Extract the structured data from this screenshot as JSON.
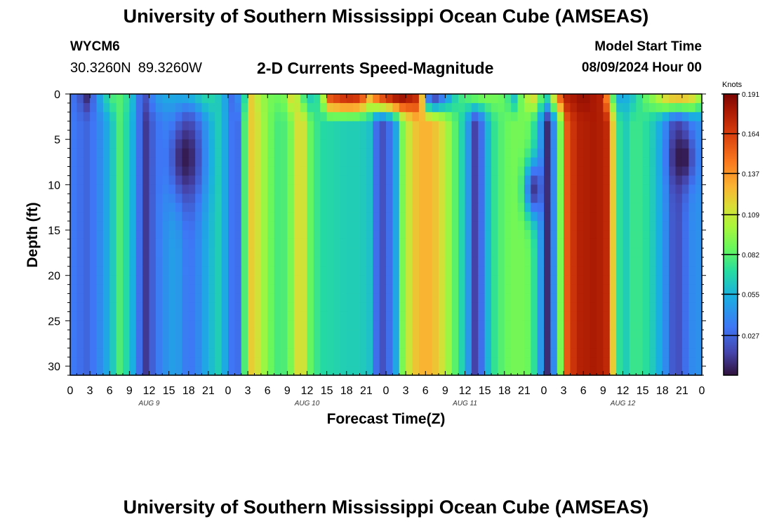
{
  "page": {
    "title": "University of Southern Mississippi Ocean Cube (AMSEAS)",
    "footer_title": "University of Southern Mississippi Ocean Cube (AMSEAS)",
    "station_id": "WYCM6",
    "latitude": "30.3260N",
    "longitude": "89.3260W",
    "subtitle": "2-D Currents Speed-Magnitude",
    "model_start_label": "Model Start Time",
    "model_start_value": "08/09/2024 Hour 00"
  },
  "chart_data": {
    "type": "heatmap",
    "title": "2-D Currents Speed-Magnitude",
    "xlabel": "Forecast Time(Z)",
    "ylabel": "Depth (ft)",
    "x_range_hours": [
      0,
      96
    ],
    "x_tick_step_hours": 3,
    "x_tick_labels": [
      "0",
      "3",
      "6",
      "9",
      "12",
      "15",
      "18",
      "21",
      "0",
      "3",
      "6",
      "9",
      "12",
      "15",
      "18",
      "21",
      "0",
      "3",
      "6",
      "9",
      "12",
      "15",
      "18",
      "21",
      "0",
      "3",
      "6",
      "9",
      "12",
      "15",
      "18",
      "21",
      "0"
    ],
    "day_labels": [
      {
        "label": "AUG 9",
        "hour": 12
      },
      {
        "label": "AUG 10",
        "hour": 36
      },
      {
        "label": "AUG 11",
        "hour": 60
      },
      {
        "label": "AUG 12",
        "hour": 84
      }
    ],
    "y_range_ft": [
      0,
      31
    ],
    "y_inverted": true,
    "y_ticks": [
      0,
      5,
      10,
      15,
      20,
      25,
      30
    ],
    "colorbar": {
      "unit_label": "Knots",
      "min": 0.0,
      "max": 0.191,
      "tick_values": [
        0.027,
        0.055,
        0.082,
        0.109,
        0.137,
        0.164,
        0.191
      ],
      "tick_labels": [
        "0.027",
        "0.055",
        "0.082",
        "0.109",
        "0.137",
        "0.164",
        "0.191"
      ]
    },
    "surface_layer_ft": [
      0,
      3.5
    ],
    "surface_speed_knots": [
      {
        "hour": 0,
        "v": 0.035
      },
      {
        "hour": 1.5,
        "v": 0.022
      },
      {
        "hour": 2.5,
        "v": 0.008
      },
      {
        "hour": 3.5,
        "v": 0.028
      },
      {
        "hour": 5,
        "v": 0.06
      },
      {
        "hour": 7,
        "v": 0.085
      },
      {
        "hour": 9,
        "v": 0.07
      },
      {
        "hour": 10.5,
        "v": 0.03
      },
      {
        "hour": 11.5,
        "v": 0.02
      },
      {
        "hour": 13,
        "v": 0.045
      },
      {
        "hour": 15,
        "v": 0.055
      },
      {
        "hour": 17,
        "v": 0.06
      },
      {
        "hour": 19,
        "v": 0.065
      },
      {
        "hour": 21,
        "v": 0.072
      },
      {
        "hour": 23,
        "v": 0.06
      },
      {
        "hour": 24.5,
        "v": 0.03
      },
      {
        "hour": 26,
        "v": 0.045
      },
      {
        "hour": 27.5,
        "v": 0.12
      },
      {
        "hour": 29,
        "v": 0.1
      },
      {
        "hour": 31,
        "v": 0.085
      },
      {
        "hour": 32.5,
        "v": 0.09
      },
      {
        "hour": 34,
        "v": 0.125
      },
      {
        "hour": 35,
        "v": 0.085
      },
      {
        "hour": 36.5,
        "v": 0.065
      },
      {
        "hour": 38,
        "v": 0.075
      },
      {
        "hour": 39.5,
        "v": 0.16
      },
      {
        "hour": 42,
        "v": 0.175
      },
      {
        "hour": 44,
        "v": 0.17
      },
      {
        "hour": 45.5,
        "v": 0.13
      },
      {
        "hour": 47,
        "v": 0.16
      },
      {
        "hour": 50,
        "v": 0.19
      },
      {
        "hour": 53,
        "v": 0.17
      },
      {
        "hour": 54.5,
        "v": 0.03
      },
      {
        "hour": 55.5,
        "v": 0.015
      },
      {
        "hour": 57,
        "v": 0.04
      },
      {
        "hour": 59,
        "v": 0.075
      },
      {
        "hour": 62,
        "v": 0.09
      },
      {
        "hour": 64,
        "v": 0.09
      },
      {
        "hour": 66,
        "v": 0.085
      },
      {
        "hour": 67.5,
        "v": 0.06
      },
      {
        "hour": 69,
        "v": 0.1
      },
      {
        "hour": 71,
        "v": 0.12
      },
      {
        "hour": 72,
        "v": 0.05
      },
      {
        "hour": 73,
        "v": 0.09
      },
      {
        "hour": 75,
        "v": 0.175
      },
      {
        "hour": 78,
        "v": 0.185
      },
      {
        "hour": 81,
        "v": 0.175
      },
      {
        "hour": 83,
        "v": 0.05
      },
      {
        "hour": 85,
        "v": 0.055
      },
      {
        "hour": 87,
        "v": 0.08
      },
      {
        "hour": 89,
        "v": 0.1
      },
      {
        "hour": 91,
        "v": 0.125
      },
      {
        "hour": 93,
        "v": 0.13
      },
      {
        "hour": 95,
        "v": 0.115
      },
      {
        "hour": 96,
        "v": 0.09
      }
    ],
    "deep_speed_knots": [
      {
        "hour": 0,
        "v": 0.035
      },
      {
        "hour": 1.5,
        "v": 0.03
      },
      {
        "hour": 2.5,
        "v": 0.027
      },
      {
        "hour": 4,
        "v": 0.035
      },
      {
        "hour": 6,
        "v": 0.055
      },
      {
        "hour": 7.5,
        "v": 0.08
      },
      {
        "hour": 9,
        "v": 0.065
      },
      {
        "hour": 10.5,
        "v": 0.03
      },
      {
        "hour": 11.5,
        "v": 0.012
      },
      {
        "hour": 12.5,
        "v": 0.025
      },
      {
        "hour": 14,
        "v": 0.04
      },
      {
        "hour": 16,
        "v": 0.05
      },
      {
        "hour": 18,
        "v": 0.03
      },
      {
        "hour": 19.5,
        "v": 0.04
      },
      {
        "hour": 21,
        "v": 0.055
      },
      {
        "hour": 22.5,
        "v": 0.065
      },
      {
        "hour": 24,
        "v": 0.045
      },
      {
        "hour": 25,
        "v": 0.02
      },
      {
        "hour": 26,
        "v": 0.04
      },
      {
        "hour": 27,
        "v": 0.12
      },
      {
        "hour": 28,
        "v": 0.12
      },
      {
        "hour": 30,
        "v": 0.09
      },
      {
        "hour": 32,
        "v": 0.075
      },
      {
        "hour": 33.5,
        "v": 0.09
      },
      {
        "hour": 35,
        "v": 0.125
      },
      {
        "hour": 36.5,
        "v": 0.085
      },
      {
        "hour": 38,
        "v": 0.07
      },
      {
        "hour": 40,
        "v": 0.068
      },
      {
        "hour": 42,
        "v": 0.065
      },
      {
        "hour": 44,
        "v": 0.065
      },
      {
        "hour": 45.5,
        "v": 0.06
      },
      {
        "hour": 46.5,
        "v": 0.03
      },
      {
        "hour": 47.5,
        "v": 0.02
      },
      {
        "hour": 48.5,
        "v": 0.03
      },
      {
        "hour": 49.5,
        "v": 0.05
      },
      {
        "hour": 50.5,
        "v": 0.09
      },
      {
        "hour": 52,
        "v": 0.12
      },
      {
        "hour": 54,
        "v": 0.13
      },
      {
        "hour": 56,
        "v": 0.12
      },
      {
        "hour": 58,
        "v": 0.09
      },
      {
        "hour": 60,
        "v": 0.06
      },
      {
        "hour": 61.5,
        "v": 0.015
      },
      {
        "hour": 62.5,
        "v": 0.03
      },
      {
        "hour": 64,
        "v": 0.07
      },
      {
        "hour": 66,
        "v": 0.085
      },
      {
        "hour": 68,
        "v": 0.09
      },
      {
        "hour": 70,
        "v": 0.085
      },
      {
        "hour": 71,
        "v": 0.06
      },
      {
        "hour": 72,
        "v": 0.03
      },
      {
        "hour": 72.5,
        "v": 0.008
      },
      {
        "hour": 73.5,
        "v": 0.04
      },
      {
        "hour": 74.5,
        "v": 0.09
      },
      {
        "hour": 75.5,
        "v": 0.155
      },
      {
        "hour": 77,
        "v": 0.175
      },
      {
        "hour": 80,
        "v": 0.18
      },
      {
        "hour": 82,
        "v": 0.17
      },
      {
        "hour": 82.8,
        "v": 0.09
      },
      {
        "hour": 84,
        "v": 0.06
      },
      {
        "hour": 85.5,
        "v": 0.075
      },
      {
        "hour": 87,
        "v": 0.075
      },
      {
        "hour": 89,
        "v": 0.06
      },
      {
        "hour": 90.5,
        "v": 0.04
      },
      {
        "hour": 92,
        "v": 0.015
      },
      {
        "hour": 93.5,
        "v": 0.03
      },
      {
        "hour": 95,
        "v": 0.045
      },
      {
        "hour": 96,
        "v": 0.04
      }
    ],
    "lower_layer_peaks": [
      {
        "hour": 17.5,
        "depth_ft": 7,
        "v": 0.003,
        "sigma_hours": 1.8,
        "sigma_ft": 3.5
      },
      {
        "hour": 70.5,
        "depth_ft": 10.5,
        "v": 0.012,
        "sigma_hours": 1.0,
        "sigma_ft": 2.2
      },
      {
        "hour": 93,
        "depth_ft": 7,
        "v": 0.001,
        "sigma_hours": 1.3,
        "sigma_ft": 2.2
      }
    ]
  }
}
